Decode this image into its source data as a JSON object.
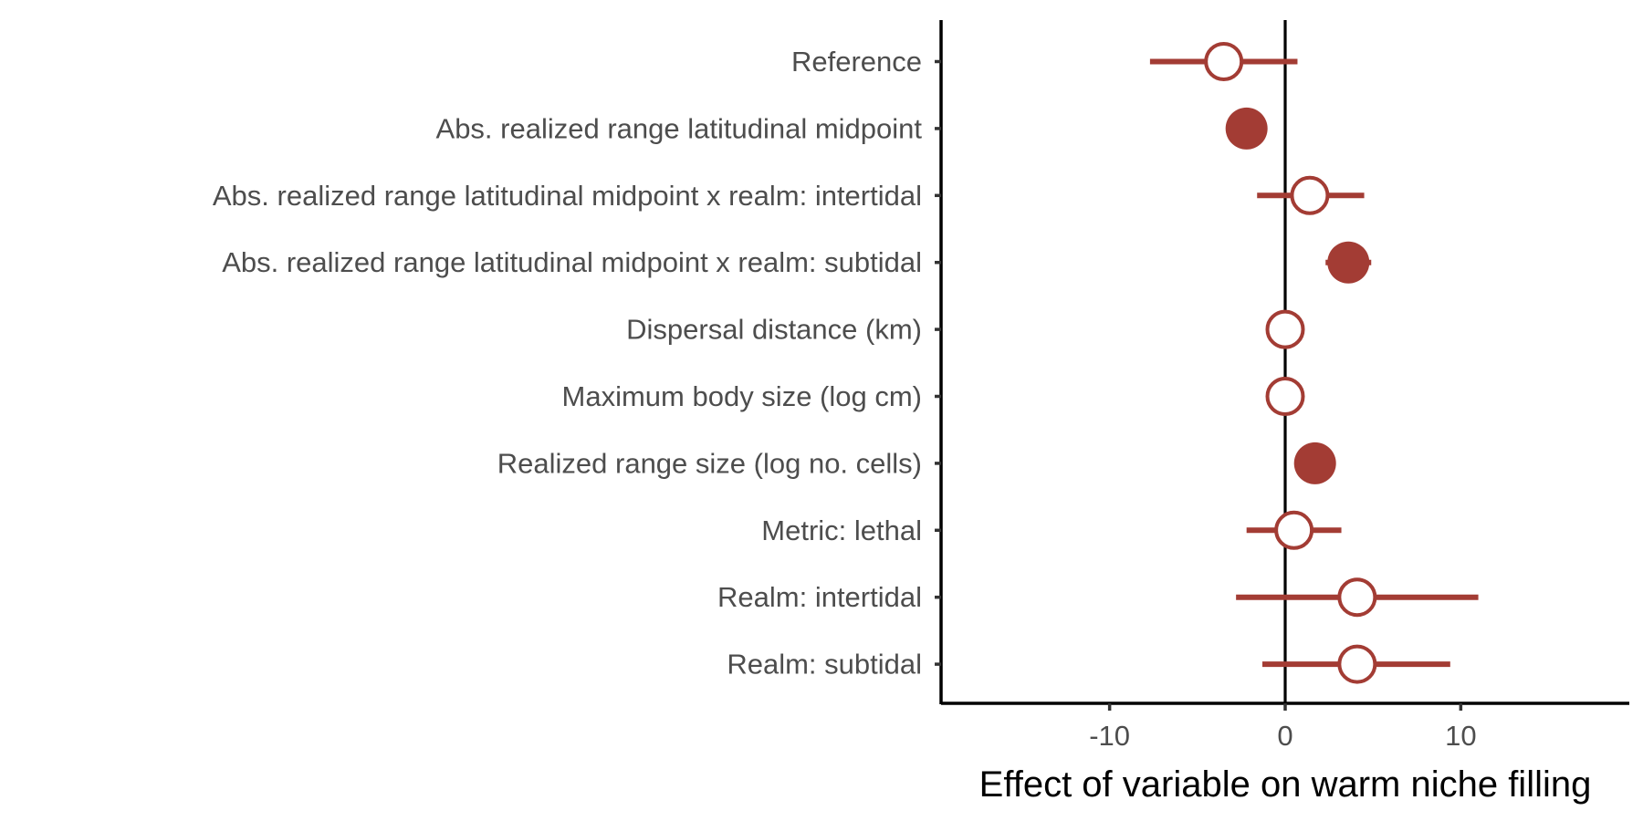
{
  "chart_data": {
    "type": "scatter",
    "subtype": "forest-plot",
    "title": "",
    "xlabel": "Effect of variable on warm niche filling",
    "ylabel": "",
    "xlim": [
      -19.6,
      19.6
    ],
    "xticks": [
      -10,
      0,
      10
    ],
    "xtick_labels": [
      "-10",
      "0",
      "10"
    ],
    "reference_line_x": 0,
    "grid": false,
    "legend": "none",
    "color": "#a33c34",
    "points": [
      {
        "label": "Reference",
        "estimate": -3.5,
        "lower": -7.7,
        "upper": 0.7,
        "significant": false
      },
      {
        "label": "Abs. realized range latitudinal midpoint",
        "estimate": -2.2,
        "lower": -2.4,
        "upper": -2.0,
        "significant": true
      },
      {
        "label": "Abs. realized range latitudinal midpoint  x realm: intertidal",
        "estimate": 1.4,
        "lower": -1.6,
        "upper": 4.5,
        "significant": false
      },
      {
        "label": "Abs. realized range latitudinal midpoint  x realm: subtidal",
        "estimate": 3.6,
        "lower": 2.3,
        "upper": 4.9,
        "significant": true
      },
      {
        "label": "Dispersal distance (km)",
        "estimate": 0.0,
        "lower": -0.2,
        "upper": 0.2,
        "significant": false
      },
      {
        "label": "Maximum body size (log cm)",
        "estimate": 0.0,
        "lower": -0.2,
        "upper": 0.2,
        "significant": false
      },
      {
        "label": "Realized range size (log no. cells)",
        "estimate": 1.7,
        "lower": 1.5,
        "upper": 1.9,
        "significant": true
      },
      {
        "label": "Metric: lethal",
        "estimate": 0.5,
        "lower": -2.2,
        "upper": 3.2,
        "significant": false
      },
      {
        "label": "Realm: intertidal",
        "estimate": 4.1,
        "lower": -2.8,
        "upper": 11.0,
        "significant": false
      },
      {
        "label": "Realm: subtidal",
        "estimate": 4.1,
        "lower": -1.3,
        "upper": 9.4,
        "significant": false
      }
    ]
  }
}
